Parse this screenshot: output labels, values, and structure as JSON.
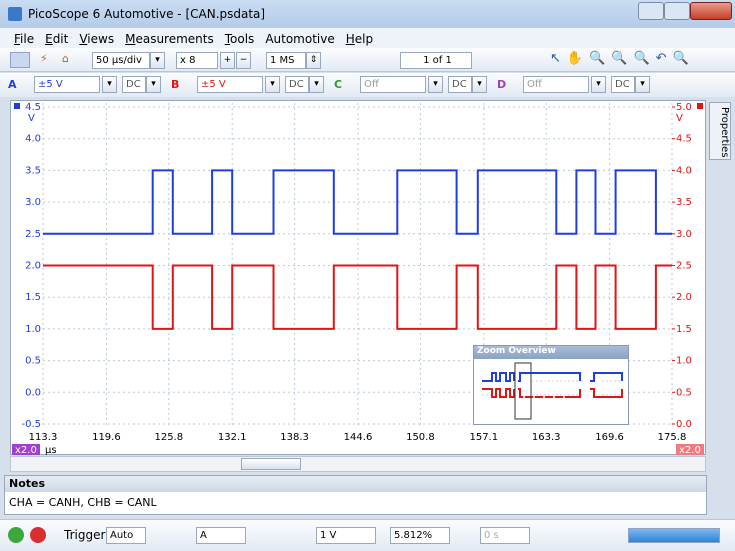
{
  "window": {
    "title": "PicoScope 6 Automotive - [CAN.psdata]"
  },
  "menu": [
    "File",
    "Edit",
    "Views",
    "Measurements",
    "Tools",
    "Automotive",
    "Help"
  ],
  "toolbar": {
    "timebase": "50 µs/div",
    "zoom": "x 8",
    "samples": "1 MS",
    "buffer": "1 of 1"
  },
  "channels": [
    {
      "name": "A",
      "range": "±5 V",
      "coupling": "DC"
    },
    {
      "name": "B",
      "range": "±5 V",
      "coupling": "DC"
    },
    {
      "name": "C",
      "range": "Off",
      "coupling": "DC"
    },
    {
      "name": "D",
      "range": "Off",
      "coupling": "DC"
    }
  ],
  "properties_tab": "Properties",
  "zoom_overview": {
    "title": "Zoom Overview"
  },
  "notes": {
    "title": "Notes",
    "text": "CHA = CANH, CHB = CANL"
  },
  "statusbar": {
    "trigger": "Trigger",
    "mode": "Auto",
    "source": "A",
    "level": "1 V",
    "position": "5.812%",
    "delay": "0 s"
  },
  "chart_data": {
    "type": "line",
    "x_unit": "µs",
    "y_unit": "V",
    "y2_unit": "V",
    "x_scale_left": "x2.0",
    "x_scale_right": "x2.0",
    "grid": true,
    "xlim": [
      113.3,
      175.8
    ],
    "xticks": [
      113.3,
      119.6,
      125.8,
      132.1,
      138.3,
      144.6,
      150.8,
      157.1,
      163.3,
      169.6,
      175.8
    ],
    "ylim": [
      -0.5,
      4.5
    ],
    "yticks": [
      4.5,
      {
        "value": 4,
        "label": "4.0"
      },
      3.5,
      {
        "value": 3,
        "label": "3.0"
      },
      2.5,
      {
        "value": 2,
        "label": "2.0"
      },
      1.5,
      {
        "value": 1,
        "label": "1.0"
      },
      0.5,
      {
        "value": 0,
        "label": "0.0"
      },
      -0.5
    ],
    "y2lim": [
      0,
      5
    ],
    "y2ticks": [
      {
        "value": 5,
        "label": "5.0"
      },
      4.5,
      {
        "value": 4,
        "label": "4.0"
      },
      3.5,
      {
        "value": 3,
        "label": "3.0"
      },
      2.5,
      {
        "value": 2,
        "label": "2.0"
      },
      1.5,
      {
        "value": 1,
        "label": "1.0"
      },
      0.5,
      {
        "value": 0,
        "label": "0.0"
      }
    ],
    "x": [
      113.3,
      124.2,
      124.2,
      126.2,
      126.2,
      130.1,
      130.1,
      132.1,
      132.1,
      136.2,
      136.2,
      142.2,
      142.2,
      148.5,
      148.5,
      154.4,
      154.4,
      156.5,
      156.5,
      164.3,
      164.3,
      166.3,
      166.3,
      168.2,
      168.2,
      170.2,
      170.2,
      174.2,
      174.2,
      175.8
    ],
    "series": [
      {
        "name": "CANH",
        "color": "#1f3ee0",
        "values": [
          2.5,
          2.5,
          3.5,
          3.5,
          2.5,
          2.5,
          3.5,
          3.5,
          2.5,
          2.5,
          3.5,
          3.5,
          2.5,
          2.5,
          3.5,
          3.5,
          2.5,
          2.5,
          3.5,
          3.5,
          2.5,
          2.5,
          3.5,
          3.5,
          2.5,
          2.5,
          3.5,
          3.5,
          2.5,
          2.5
        ]
      },
      {
        "name": "CANL",
        "color": "#e01515",
        "axis": "y2",
        "values": [
          2.5,
          2.5,
          1.5,
          1.5,
          2.5,
          2.5,
          1.5,
          1.5,
          2.5,
          2.5,
          1.5,
          1.5,
          2.5,
          2.5,
          1.5,
          1.5,
          2.5,
          2.5,
          1.5,
          1.5,
          2.5,
          2.5,
          1.5,
          1.5,
          2.5,
          2.5,
          1.5,
          1.5,
          2.5,
          2.5
        ]
      }
    ]
  }
}
